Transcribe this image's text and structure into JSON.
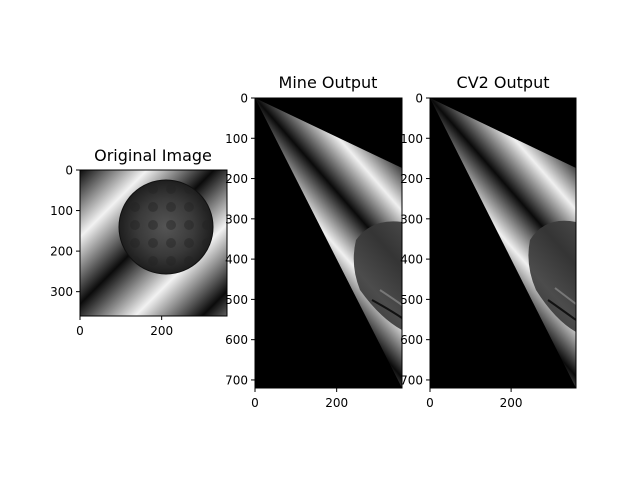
{
  "figure": {
    "panels": [
      {
        "title": "Original Image",
        "image_size": [
          360,
          360
        ],
        "x_ticks": [
          0,
          200
        ],
        "y_ticks": [
          0,
          100,
          200,
          300
        ]
      },
      {
        "title": "Mine Output",
        "image_size": [
          360,
          720
        ],
        "x_ticks": [
          0,
          200
        ],
        "y_ticks": [
          0,
          100,
          200,
          300,
          400,
          500,
          600,
          700
        ]
      },
      {
        "title": "CV2 Output",
        "image_size": [
          360,
          720
        ],
        "x_ticks": [
          0,
          200
        ],
        "y_ticks": [
          0,
          100,
          200,
          300,
          400,
          500,
          600,
          700
        ]
      }
    ]
  },
  "chart_data": [
    {
      "type": "image",
      "title": "Original Image",
      "xlabel": "",
      "ylabel": "",
      "xlim": [
        0,
        360
      ],
      "ylim": [
        360,
        0
      ],
      "x_ticks": [
        0,
        200
      ],
      "y_ticks": [
        0,
        100,
        200,
        300
      ],
      "colormap": "gray"
    },
    {
      "type": "image",
      "title": "Mine Output",
      "xlabel": "",
      "ylabel": "",
      "xlim": [
        0,
        360
      ],
      "ylim": [
        720,
        0
      ],
      "x_ticks": [
        0,
        200
      ],
      "y_ticks": [
        0,
        100,
        200,
        300,
        400,
        500,
        600,
        700
      ],
      "colormap": "gray"
    },
    {
      "type": "image",
      "title": "CV2 Output",
      "xlabel": "",
      "ylabel": "",
      "xlim": [
        0,
        360
      ],
      "ylim": [
        720,
        0
      ],
      "x_ticks": [
        0,
        200
      ],
      "y_ticks": [
        0,
        100,
        200,
        300,
        400,
        500,
        600,
        700
      ],
      "colormap": "gray"
    }
  ]
}
